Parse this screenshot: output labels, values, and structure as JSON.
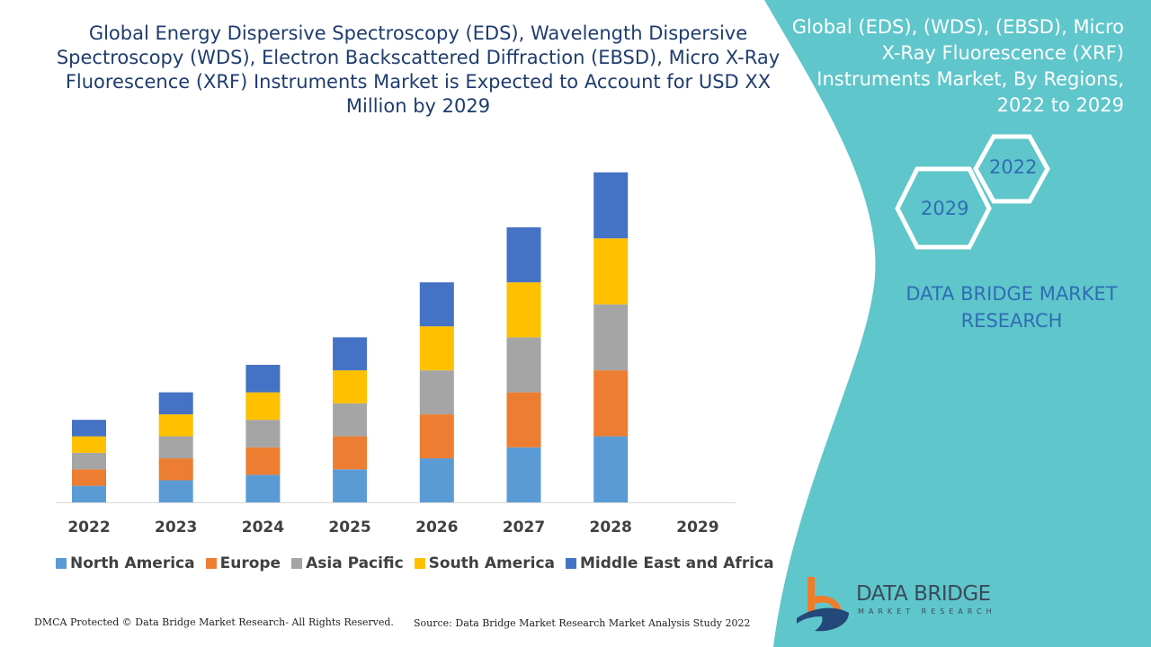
{
  "title": "Global Energy Dispersive Spectroscopy (EDS), Wavelength Dispersive Spectroscopy (WDS), Electron Backscattered Diffraction (EBSD), Micro X-Ray Fluorescence (XRF) Instruments Market is Expected to Account for USD XX Million by 2029",
  "panel": {
    "title": "Global (EDS), (WDS), (EBSD), Micro X-Ray Fluorescence (XRF) Instruments Market, By Regions, 2022 to 2029",
    "hex_start": "2022",
    "hex_end": "2029",
    "brand": "DATA BRIDGE MARKET RESEARCH",
    "color": "#5fc6cb"
  },
  "logo": {
    "name": "DATA BRIDGE",
    "sub": "MARKET RESEARCH"
  },
  "footer": {
    "dmca": "DMCA Protected © Data Bridge Market Research- All Rights Reserved.",
    "source": "Source: Data Bridge Market Research Market Analysis Study 2022"
  },
  "chart_data": {
    "type": "bar",
    "stacked": true,
    "grid": false,
    "legend_position": "bottom",
    "categories": [
      "2022",
      "2023",
      "2024",
      "2025",
      "2026",
      "2027",
      "2028",
      "2029"
    ],
    "series": [
      {
        "name": "North America",
        "color": "#5b9bd5",
        "values": [
          18,
          24,
          30,
          36,
          48,
          60,
          72,
          null
        ]
      },
      {
        "name": "Europe",
        "color": "#ed7d31",
        "values": [
          18,
          24,
          30,
          36,
          48,
          60,
          72,
          null
        ]
      },
      {
        "name": "Asia Pacific",
        "color": "#a5a5a5",
        "values": [
          18,
          24,
          30,
          36,
          48,
          60,
          72,
          null
        ]
      },
      {
        "name": "South America",
        "color": "#ffc000",
        "values": [
          18,
          24,
          30,
          36,
          48,
          60,
          72,
          null
        ]
      },
      {
        "name": "Middle East and Africa",
        "color": "#4472c4",
        "values": [
          18,
          24,
          30,
          36,
          48,
          60,
          72,
          null
        ]
      }
    ]
  }
}
